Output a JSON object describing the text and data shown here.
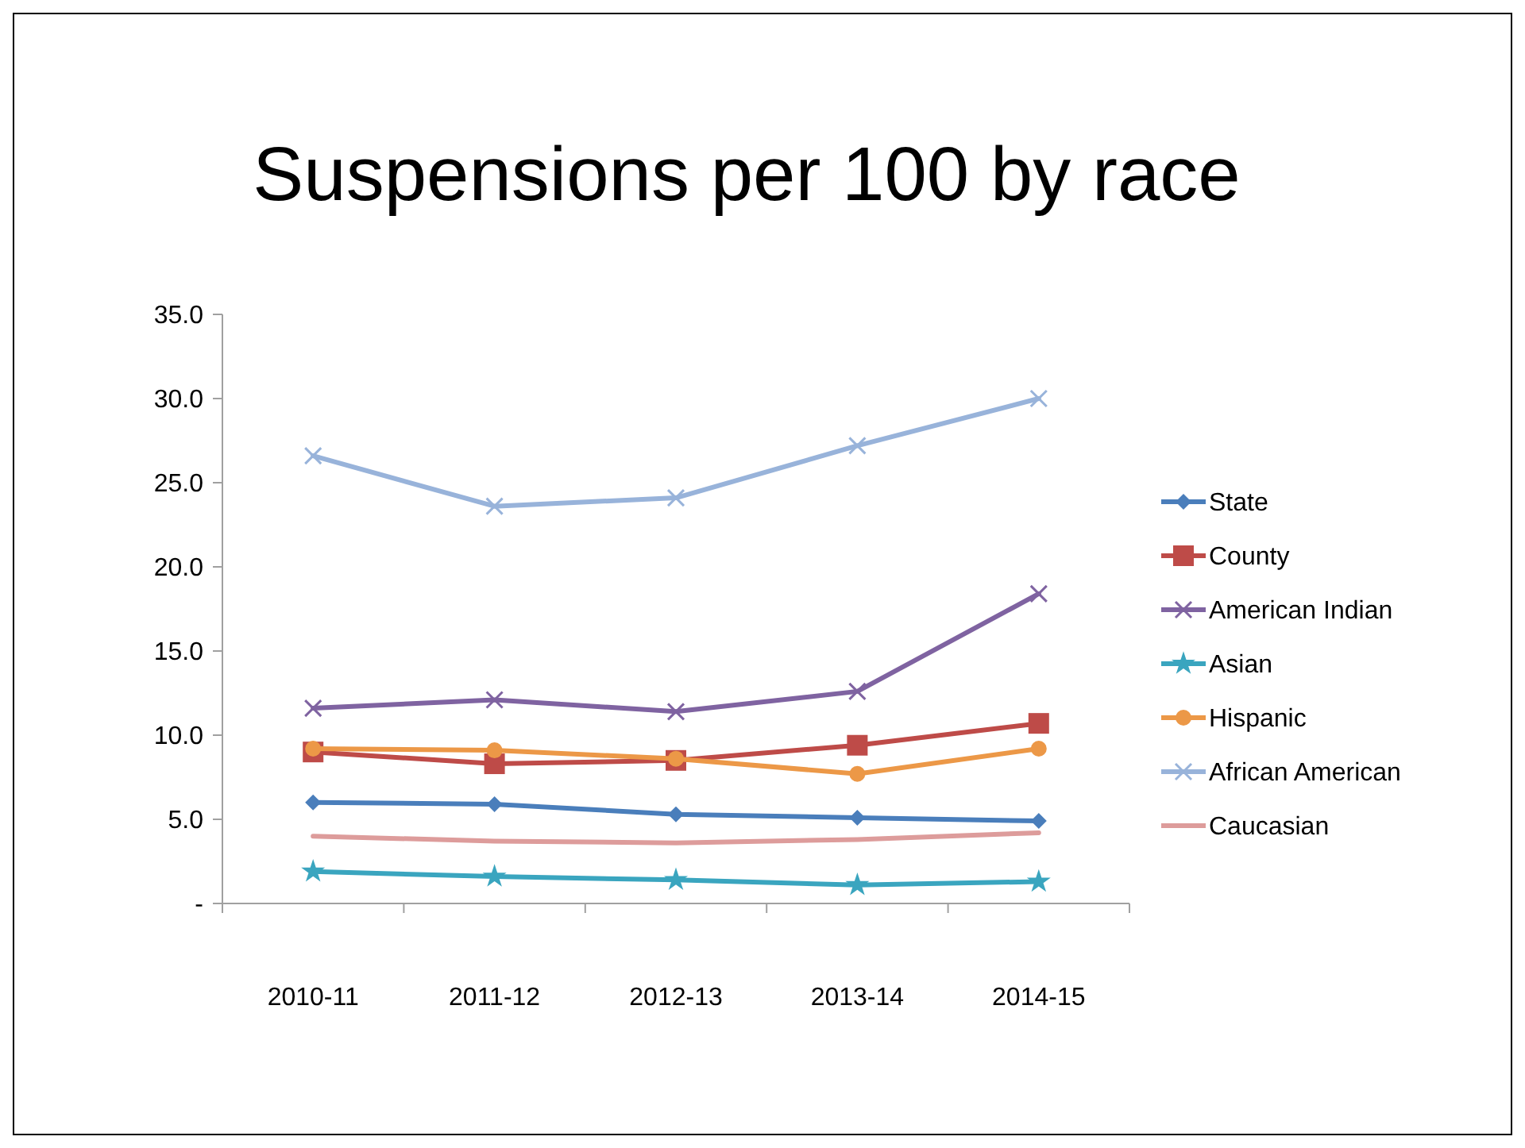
{
  "chart_data": {
    "type": "line",
    "title": "Suspensions per 100 by race",
    "categories": [
      "2010-11",
      "2011-12",
      "2012-13",
      "2013-14",
      "2014-15"
    ],
    "ylim": [
      0,
      35
    ],
    "yticks": [
      {
        "value": 0,
        "label": "-"
      },
      {
        "value": 5,
        "label": "5.0"
      },
      {
        "value": 10,
        "label": "10.0"
      },
      {
        "value": 15,
        "label": "15.0"
      },
      {
        "value": 20,
        "label": "20.0"
      },
      {
        "value": 25,
        "label": "25.0"
      },
      {
        "value": 30,
        "label": "30.0"
      },
      {
        "value": 35,
        "label": "35.0"
      }
    ],
    "grid": false,
    "legend": "right",
    "series": [
      {
        "name": "State",
        "color": "#4a7ebb",
        "marker": "diamond",
        "values": [
          6.0,
          5.9,
          5.3,
          5.1,
          4.9
        ]
      },
      {
        "name": "County",
        "color": "#be4b48",
        "marker": "square",
        "values": [
          9.0,
          8.3,
          8.5,
          9.4,
          10.7
        ]
      },
      {
        "name": "American Indian",
        "color": "#7f63a1",
        "marker": "cross",
        "values": [
          11.6,
          12.1,
          11.4,
          12.6,
          18.4
        ]
      },
      {
        "name": "Asian",
        "color": "#3aa5bf",
        "marker": "star",
        "values": [
          1.9,
          1.6,
          1.4,
          1.1,
          1.3
        ]
      },
      {
        "name": "Hispanic",
        "color": "#ec9847",
        "marker": "circle",
        "values": [
          9.2,
          9.1,
          8.6,
          7.7,
          9.2
        ]
      },
      {
        "name": "African American",
        "color": "#98b3da",
        "marker": "cross",
        "values": [
          26.6,
          23.6,
          24.1,
          27.2,
          30.0
        ]
      },
      {
        "name": "Caucasian",
        "color": "#dd9c9b",
        "marker": "none",
        "values": [
          4.0,
          3.7,
          3.6,
          3.8,
          4.2
        ]
      }
    ]
  }
}
